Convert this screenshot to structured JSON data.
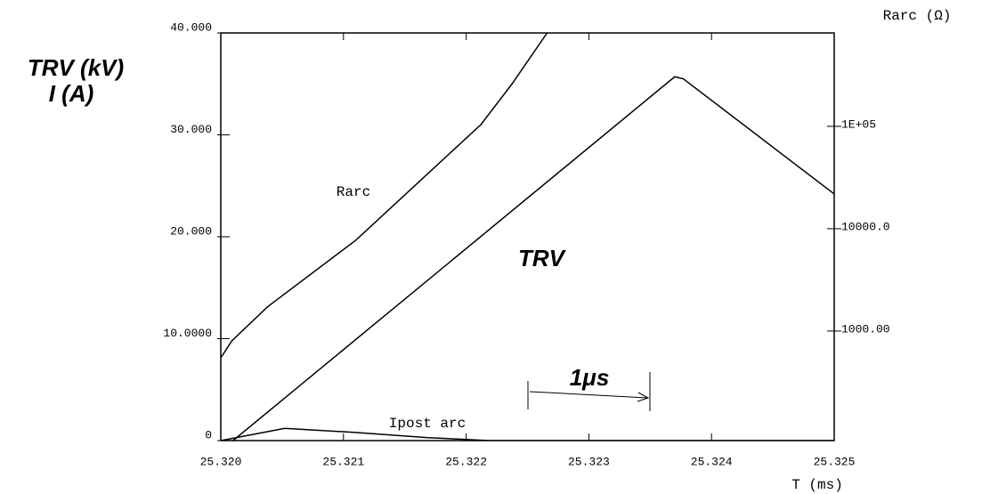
{
  "chart_data": {
    "type": "line",
    "y_label": [
      "TRV (kV)",
      "I (A)"
    ],
    "y2_label": "Rarc  (Ω)",
    "x_label": "T  (ms)",
    "annotations": [
      "Rarc",
      "TRV",
      "Ipost arc",
      "1μs"
    ],
    "xlim": [
      25.32,
      25.325
    ],
    "xticks": [
      {
        "value": 25.32,
        "label": "25.320"
      },
      25.321,
      25.322,
      25.323,
      25.324,
      25.325
    ],
    "ylim": [
      0,
      40
    ],
    "yticks": [
      0,
      {
        "value": 10,
        "label": "10.0000"
      },
      {
        "value": 20,
        "label": "20.000"
      },
      {
        "value": 30,
        "label": "30.000"
      },
      {
        "value": 40,
        "label": "40.000"
      }
    ],
    "y2lim": [
      85,
      818000
    ],
    "y2scale": "log",
    "y2ticks": [
      {
        "value": 1000,
        "label": "1000.00"
      },
      {
        "value": 10000,
        "label": "10000.0"
      },
      {
        "value": 100000,
        "label": "1E+05"
      }
    ],
    "series": [
      {
        "name": "TRV",
        "color": "#000000",
        "x": [
          25.3201,
          25.3237,
          25.32377,
          25.325
        ],
        "values": [
          0,
          35.7,
          35.5,
          24.2
        ]
      },
      {
        "name": "Rarc",
        "color": "#000000",
        "axis": "y2",
        "x": [
          25.32,
          25.32009,
          25.32038,
          25.3211,
          25.32161,
          25.32212,
          25.32237,
          25.32266
        ],
        "values": [
          548,
          802,
          1720,
          7700,
          28300,
          104000,
          256000,
          818000
        ]
      },
      {
        "name": "Ipost arc",
        "color": "#000000",
        "x": [
          25.32,
          25.32052,
          25.3211,
          25.32168,
          25.32219,
          25.325
        ],
        "values": [
          0,
          1.2,
          0.8,
          0.3,
          0,
          0
        ]
      }
    ]
  }
}
